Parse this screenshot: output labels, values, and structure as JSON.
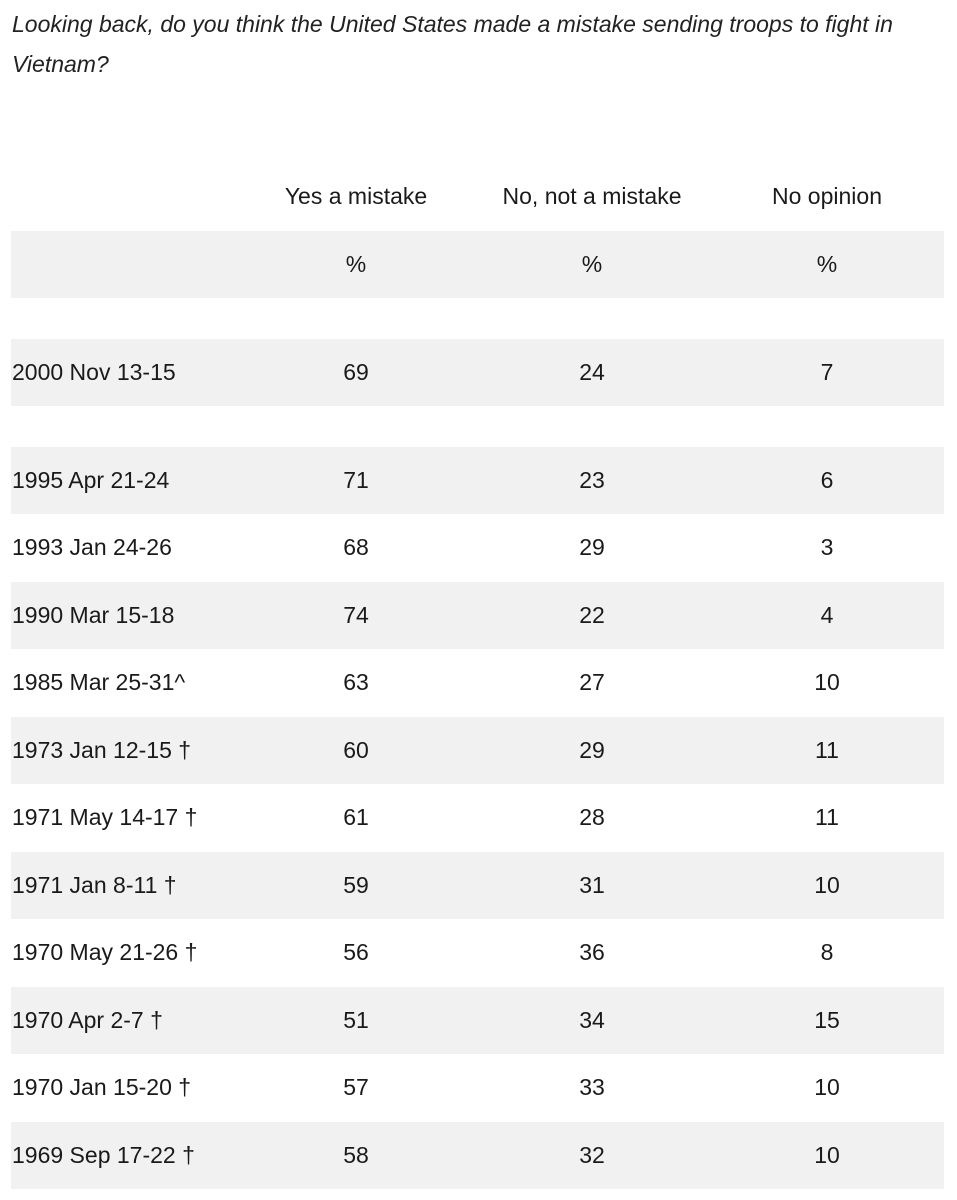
{
  "question": "Looking back, do you think the United States made a mistake sending troops to fight in Vietnam?",
  "columns": {
    "yes": "Yes a mistake",
    "no": "No, not a mistake",
    "noop": "No opinion"
  },
  "units": {
    "yes": "%",
    "no": "%",
    "noop": "%"
  },
  "rows": [
    {
      "date": "2000 Nov 13-15",
      "yes": "69",
      "no": "24",
      "noop": "7"
    },
    {
      "date": "1995 Apr 21-24",
      "yes": "71",
      "no": "23",
      "noop": "6"
    },
    {
      "date": "1993 Jan 24-26",
      "yes": "68",
      "no": "29",
      "noop": "3"
    },
    {
      "date": "1990 Mar 15-18",
      "yes": "74",
      "no": "22",
      "noop": "4"
    },
    {
      "date": "1985 Mar 25-31^",
      "yes": "63",
      "no": "27",
      "noop": "10"
    },
    {
      "date": "1973 Jan 12-15 †",
      "yes": "60",
      "no": "29",
      "noop": "11"
    },
    {
      "date": "1971 May 14-17 †",
      "yes": "61",
      "no": "28",
      "noop": "11"
    },
    {
      "date": "1971 Jan 8-11 †",
      "yes": "59",
      "no": "31",
      "noop": "10"
    },
    {
      "date": "1970 May 21-26 †",
      "yes": "56",
      "no": "36",
      "noop": "8"
    },
    {
      "date": "1970 Apr 2-7 †",
      "yes": "51",
      "no": "34",
      "noop": "15"
    },
    {
      "date": "1970 Jan 15-20 †",
      "yes": "57",
      "no": "33",
      "noop": "10"
    },
    {
      "date": "1969 Sep 17-22 †",
      "yes": "58",
      "no": "32",
      "noop": "10"
    }
  ]
}
